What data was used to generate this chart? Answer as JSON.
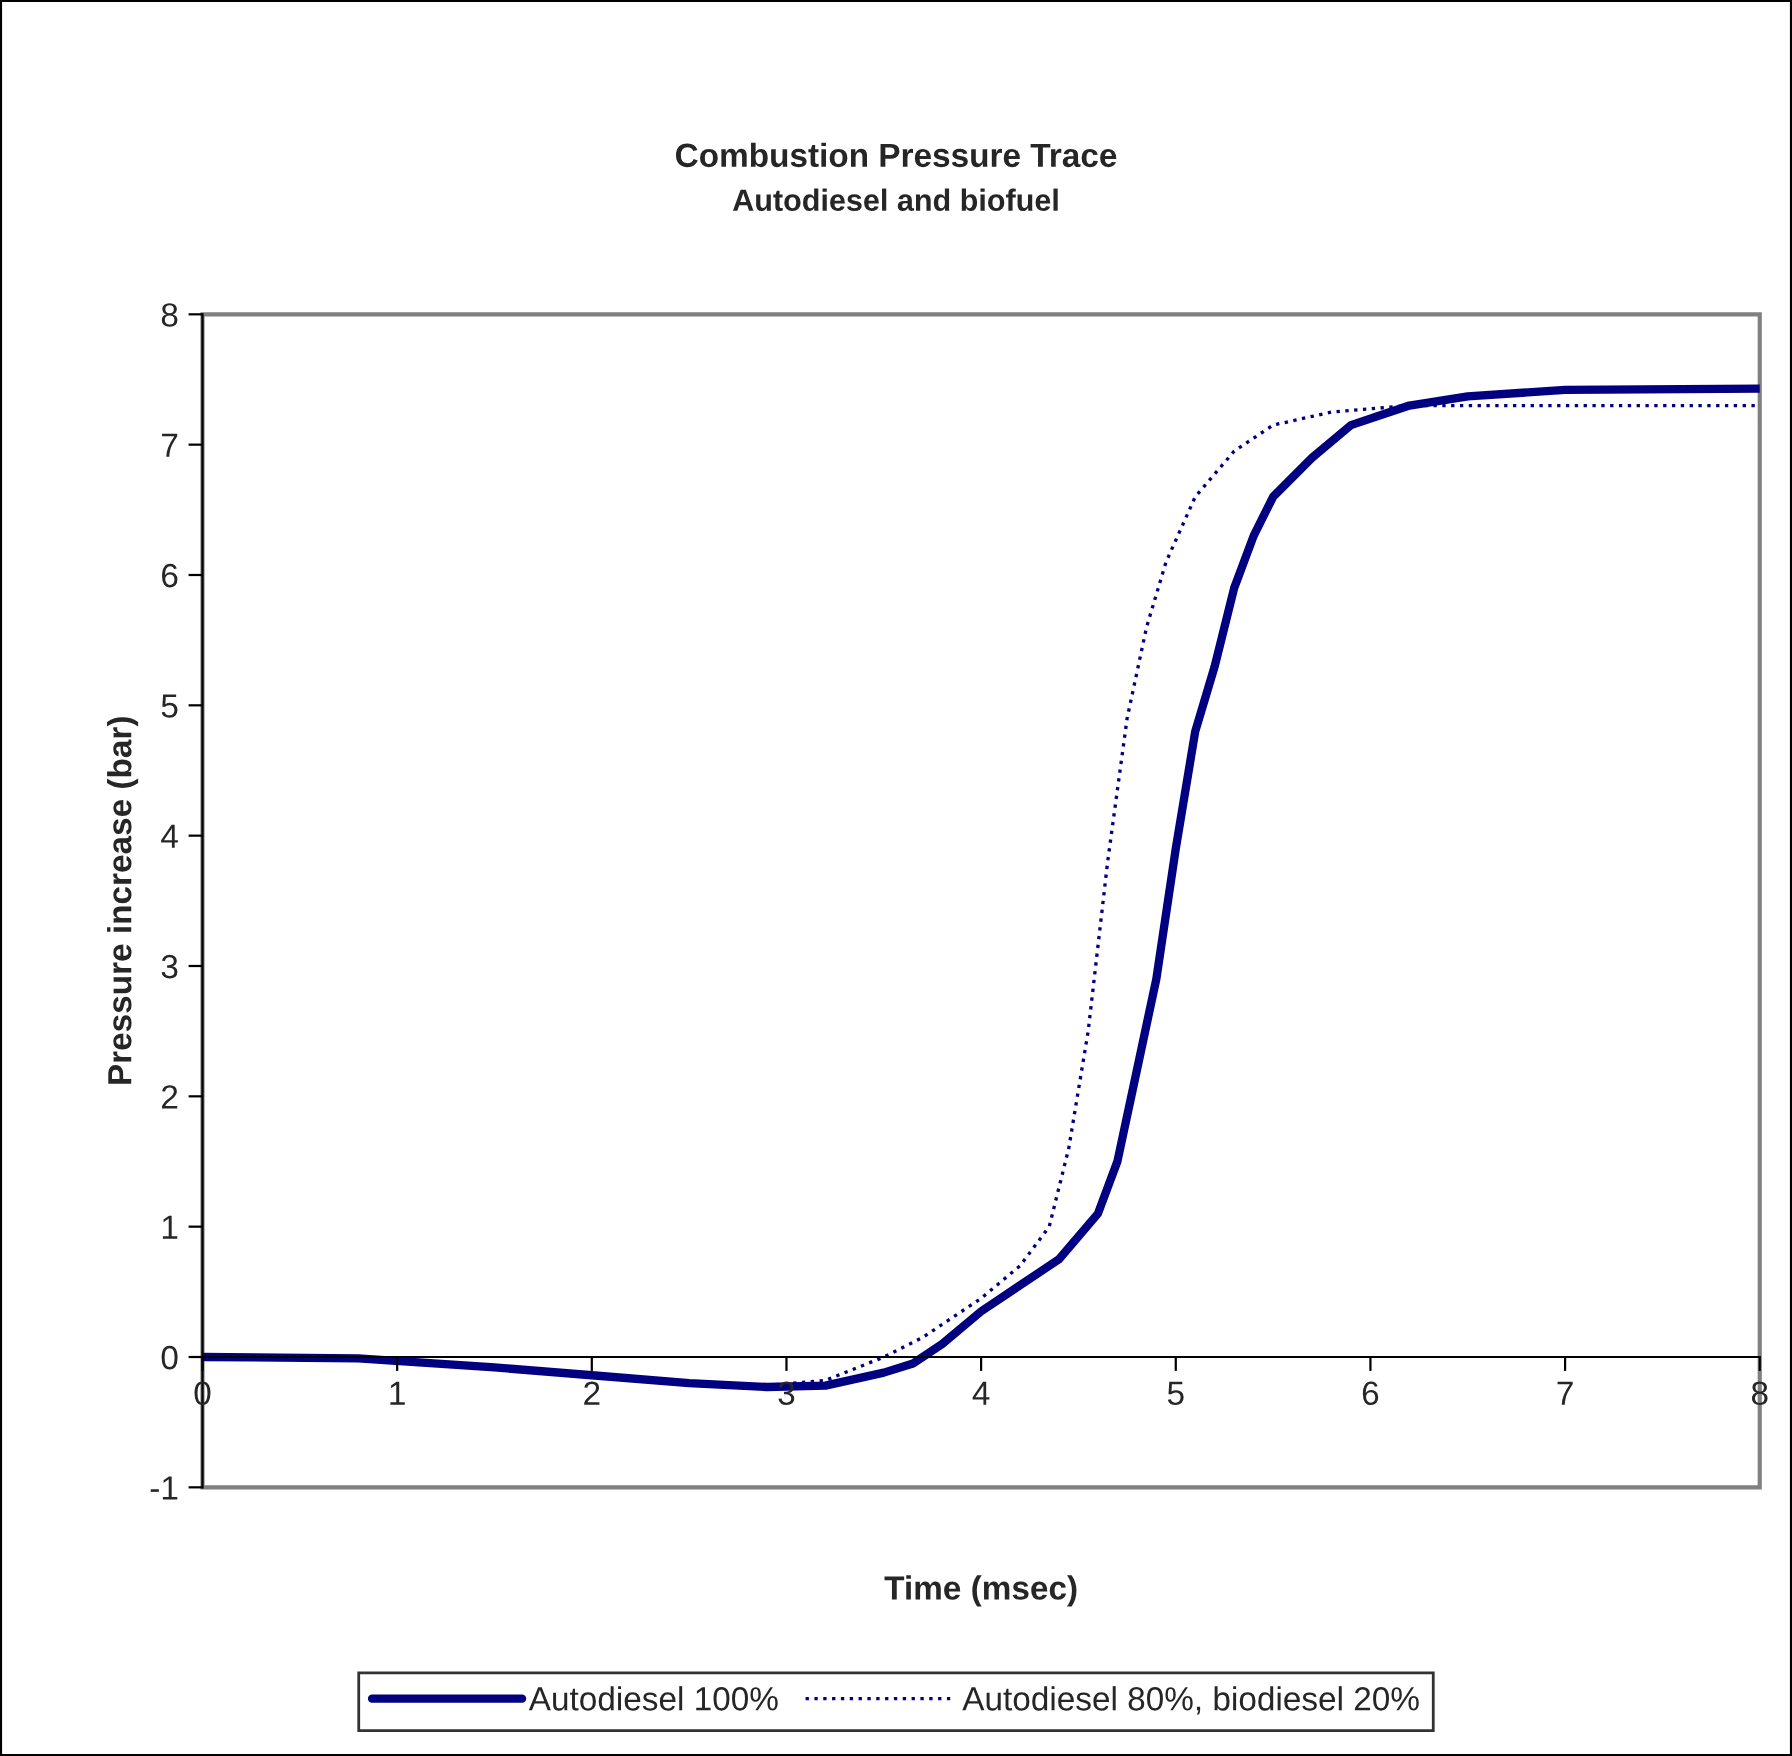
{
  "chart_data": {
    "type": "line",
    "title": "Combustion Pressure Trace",
    "subtitle": "Autodiesel and biofuel",
    "xlabel": "Time (msec)",
    "ylabel": "Pressure increase (bar)",
    "xlim": [
      0,
      8
    ],
    "xticks": [
      0,
      1,
      2,
      3,
      4,
      5,
      6,
      7,
      8
    ],
    "ylim": [
      -1,
      8
    ],
    "yticks": [
      -1,
      0,
      1,
      2,
      3,
      4,
      5,
      6,
      7,
      8
    ],
    "grid": false,
    "legend": "bottom",
    "marker": "none",
    "series": [
      {
        "name": "Autodiesel 100%",
        "color": "#000080",
        "line_style": "solid",
        "x": [
          0,
          0.8,
          1.5,
          2,
          2.5,
          2.9,
          3.2,
          3.5,
          3.65,
          3.8,
          4.0,
          4.2,
          4.4,
          4.6,
          4.7,
          4.8,
          4.9,
          5.0,
          5.1,
          5.2,
          5.3,
          5.4,
          5.5,
          5.7,
          5.9,
          6.2,
          6.5,
          7,
          8
        ],
        "values": [
          0,
          -0.01,
          -0.08,
          -0.14,
          -0.2,
          -0.23,
          -0.22,
          -0.12,
          -0.05,
          0.1,
          0.35,
          0.55,
          0.75,
          1.1,
          1.5,
          2.2,
          2.9,
          3.9,
          4.8,
          5.3,
          5.9,
          6.3,
          6.6,
          6.9,
          7.15,
          7.3,
          7.37,
          7.42,
          7.43
        ]
      },
      {
        "name": "Autodiesel 80%, biodiesel 20%",
        "color": "#000080",
        "line_style": "dotted",
        "x": [
          0,
          1,
          2,
          2.8,
          3.2,
          3.5,
          3.7,
          4.0,
          4.2,
          4.35,
          4.45,
          4.55,
          4.65,
          4.75,
          4.85,
          4.95,
          5.1,
          5.3,
          5.5,
          5.8,
          6.2,
          8
        ],
        "values": [
          0,
          -0.03,
          -0.15,
          -0.23,
          -0.18,
          0.0,
          0.15,
          0.45,
          0.7,
          1.0,
          1.6,
          2.5,
          3.8,
          4.9,
          5.6,
          6.1,
          6.6,
          6.95,
          7.15,
          7.25,
          7.3,
          7.3
        ]
      }
    ]
  }
}
